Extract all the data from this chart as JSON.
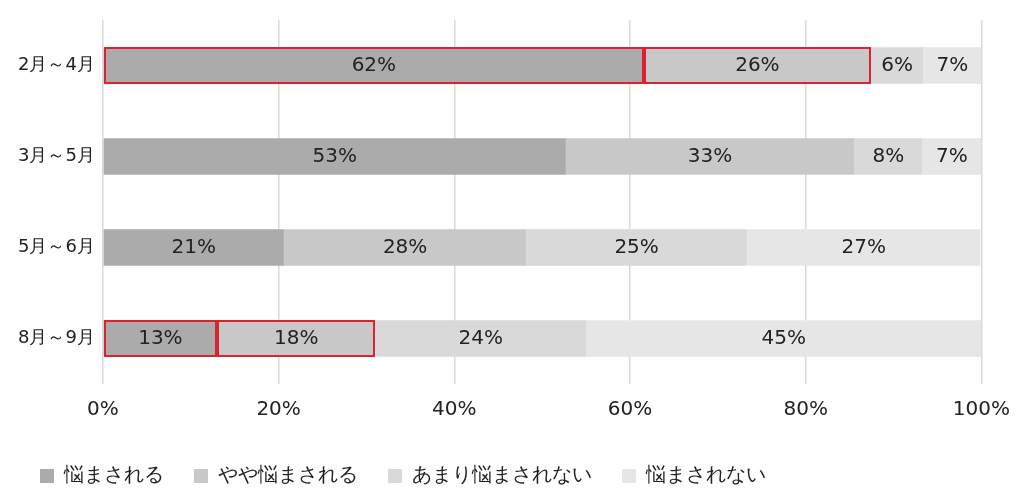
{
  "chart_data": {
    "type": "bar",
    "orientation": "horizontal",
    "stacked": true,
    "categories": [
      "2月～4月",
      "3月～5月",
      "5月～6月",
      "8月～9月"
    ],
    "series": [
      {
        "name": "悩まされる",
        "color": "#ababab",
        "values": [
          61.6,
          52.7,
          20.6,
          13
        ],
        "value_labels": [
          "62%",
          "53%",
          "21%",
          "13%"
        ]
      },
      {
        "name": "やや悩まされる",
        "color": "#c8c8c8",
        "values": [
          25.8,
          32.8,
          27.6,
          18
        ],
        "value_labels": [
          "26%",
          "33%",
          "28%",
          "18%"
        ]
      },
      {
        "name": "あまり悩まされない",
        "color": "#d9d9d9",
        "values": [
          6,
          7.8,
          25.1,
          24
        ],
        "value_labels": [
          "6%",
          "8%",
          "25%",
          "24%"
        ]
      },
      {
        "name": "悩まされない",
        "color": "#e6e6e6",
        "values": [
          6.6,
          6.7,
          26.6,
          45
        ],
        "value_labels": [
          "7%",
          "7%",
          "27%",
          "45%"
        ]
      }
    ],
    "xlim": [
      0,
      100
    ],
    "xticks": [
      {
        "value": 0,
        "label": "0%"
      },
      {
        "value": 20,
        "label": "20%"
      },
      {
        "value": 40,
        "label": "40%"
      },
      {
        "value": 60,
        "label": "60%"
      },
      {
        "value": 80,
        "label": "80%"
      },
      {
        "value": 100,
        "label": "100%"
      }
    ],
    "grid": "x",
    "legend": "bottom"
  }
}
